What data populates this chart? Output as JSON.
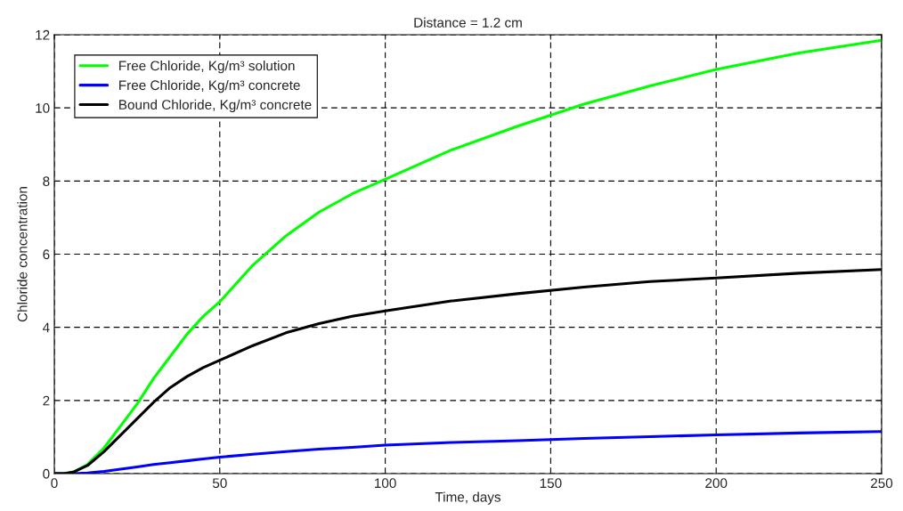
{
  "chart_data": {
    "type": "line",
    "title": "Distance = 1.2 cm",
    "xlabel": "Time, days",
    "ylabel": "Chloride concentration",
    "x": [
      0,
      3,
      6,
      10,
      15,
      20,
      25,
      30,
      35,
      40,
      45,
      50,
      60,
      70,
      80,
      90,
      100,
      120,
      140,
      160,
      180,
      200,
      225,
      250
    ],
    "series": [
      {
        "name": "Free Chloride, Kg/m³ solution",
        "color": "#00ff00",
        "values": [
          0,
          0,
          0.05,
          0.25,
          0.7,
          1.3,
          1.9,
          2.6,
          3.2,
          3.8,
          4.3,
          4.7,
          5.7,
          6.5,
          7.15,
          7.65,
          8.05,
          8.85,
          9.5,
          10.1,
          10.6,
          11.05,
          11.5,
          11.85
        ]
      },
      {
        "name": "Free Chloride, Kg/m³ concrete",
        "color": "#0000ff",
        "values": [
          0,
          0,
          0,
          0.02,
          0.06,
          0.12,
          0.18,
          0.25,
          0.3,
          0.35,
          0.4,
          0.45,
          0.53,
          0.6,
          0.67,
          0.72,
          0.78,
          0.85,
          0.9,
          0.96,
          1.01,
          1.06,
          1.11,
          1.15
        ]
      },
      {
        "name": "Bound Chloride, Kg/m³ concrete",
        "color": "#000000",
        "values": [
          0,
          0,
          0.05,
          0.22,
          0.6,
          1.05,
          1.5,
          1.95,
          2.35,
          2.65,
          2.9,
          3.1,
          3.5,
          3.85,
          4.1,
          4.3,
          4.45,
          4.72,
          4.92,
          5.1,
          5.25,
          5.35,
          5.48,
          5.58
        ]
      }
    ],
    "xlim": [
      0,
      250
    ],
    "xticks": [
      0,
      50,
      100,
      150,
      200,
      250
    ],
    "ylim": [
      0,
      12
    ],
    "yticks": [
      0,
      2,
      4,
      6,
      8,
      10,
      12
    ],
    "grid": true,
    "legend": "top left",
    "marker": "none",
    "line_style": "solid"
  }
}
